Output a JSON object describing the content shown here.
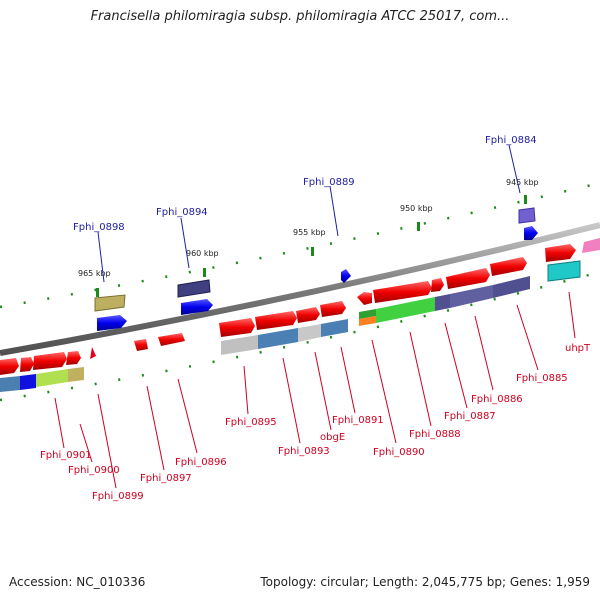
{
  "title": "Francisella philomiragia subsp. philomiragia ATCC 25017, com...",
  "footer": {
    "accession": "Accession: NC_010336",
    "topology": "Topology: circular; Length: 2,045,775 bp; Genes: 1,959"
  },
  "scale": {
    "ticks": [
      "965 kbp",
      "960 kbp",
      "955 kbp",
      "950 kbp",
      "945 kbp"
    ]
  },
  "genes_above": [
    "Fphi_0898",
    "Fphi_0894",
    "Fphi_0889",
    "Fphi_0884"
  ],
  "genes_below": [
    "Fphi_0901",
    "Fphi_0900",
    "Fphi_0899",
    "Fphi_0897",
    "Fphi_0896",
    "Fphi_0895",
    "Fphi_0893",
    "obgE",
    "Fphi_0891",
    "Fphi_0890",
    "Fphi_0888",
    "Fphi_0887",
    "Fphi_0886",
    "Fphi_0885",
    "uhpT"
  ],
  "colors": {
    "gene": "#e8001a",
    "cds": "#0000ee",
    "label_above": "#2020a0",
    "label_below": "#d00020",
    "backbone": "#808080",
    "tick": "#1a8a1a"
  }
}
